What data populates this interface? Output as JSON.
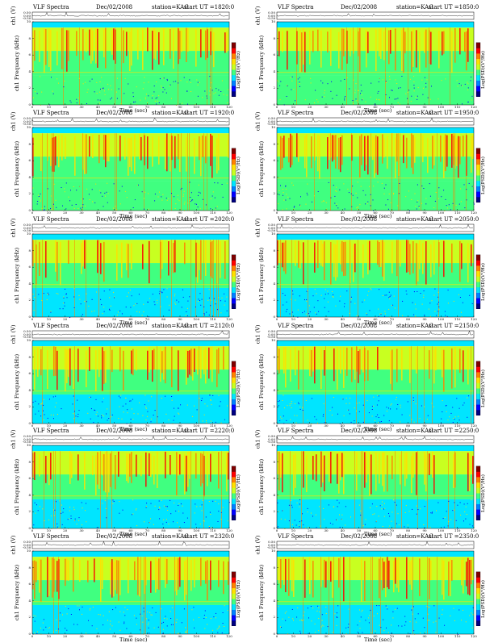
{
  "chart_data": [
    {
      "type": "heatmap",
      "title": {
        "prog": "VLF Spectra",
        "date": "Dec/02/2008",
        "station": "station=KAG",
        "start": "start  UT  =1820:0"
      },
      "ch_label": "ch1 (V)",
      "ch_ticks": [
        "0.50",
        "0.00",
        "-0.50"
      ],
      "ylabel": "ch1\nFrequency (kHz)",
      "yticks": [
        "0",
        "2",
        "4",
        "6",
        "8",
        "10"
      ],
      "xlabel": "Time  (sec)",
      "xticks": [
        "0",
        "10",
        "20",
        "30",
        "40",
        "50",
        "60",
        "70",
        "80",
        "90",
        "100",
        "110",
        "120"
      ],
      "xlim": [
        0,
        120
      ],
      "ylim": [
        0,
        10
      ],
      "cbar_label": "Log(PSD)(V²/Hz)"
    },
    {
      "type": "heatmap",
      "title": {
        "prog": "VLF Spectra",
        "date": "Dec/02/2008",
        "station": "station=KAG",
        "start": "start  UT  =1850:0"
      },
      "ch_label": "ch1 (V)",
      "ch_ticks": [
        "0.50",
        "0.00",
        "-0.50"
      ],
      "ylabel": "ch1\nFrequency (kHz)",
      "yticks": [
        "0",
        "2",
        "4",
        "6",
        "8",
        "10"
      ],
      "xlabel": "Time  (sec)",
      "xticks": [
        "0",
        "10",
        "20",
        "30",
        "40",
        "50",
        "60",
        "70",
        "80",
        "90",
        "100",
        "110",
        "120"
      ],
      "xlim": [
        0,
        120
      ],
      "ylim": [
        0,
        10
      ],
      "cbar_label": "Log(PSD)(V²/Hz)"
    },
    {
      "type": "heatmap",
      "title": {
        "prog": "VLF Spectra",
        "date": "Dec/02/2008",
        "station": "station=KAG",
        "start": "start  UT  =1920:0"
      },
      "ch_label": "ch1 (V)",
      "ch_ticks": [
        "0.50",
        "0.00",
        "-0.50"
      ],
      "ylabel": "ch1\nFrequency (kHz)",
      "yticks": [
        "0",
        "2",
        "4",
        "6",
        "8",
        "10"
      ],
      "xlabel": "Time  (sec)",
      "xticks": [
        "0",
        "10",
        "20",
        "30",
        "40",
        "50",
        "60",
        "70",
        "80",
        "90",
        "100",
        "110",
        "120"
      ],
      "xlim": [
        0,
        120
      ],
      "ylim": [
        0,
        10
      ],
      "cbar_label": "Log(PSD)(V²/Hz)"
    },
    {
      "type": "heatmap",
      "title": {
        "prog": "VLF Spectra",
        "date": "Dec/02/2008",
        "station": "station=KAG",
        "start": "start  UT  =1950:0"
      },
      "ch_label": "ch1 (V)",
      "ch_ticks": [
        "0.50",
        "0.00",
        "-0.50"
      ],
      "ylabel": "ch1\nFrequency (kHz)",
      "yticks": [
        "0",
        "2",
        "4",
        "6",
        "8",
        "10"
      ],
      "xlabel": "Time  (sec)",
      "xticks": [
        "0",
        "10",
        "20",
        "30",
        "40",
        "50",
        "60",
        "70",
        "80",
        "90",
        "100",
        "110",
        "120"
      ],
      "xlim": [
        0,
        120
      ],
      "ylim": [
        0,
        10
      ],
      "cbar_label": "Log(PSD)(V²/Hz)"
    },
    {
      "type": "heatmap",
      "title": {
        "prog": "VLF Spectra",
        "date": "Dec/02/2008",
        "station": "station=KAG",
        "start": "start  UT  =2020:0"
      },
      "ch_label": "ch1 (V)",
      "ch_ticks": [
        "0.50",
        "0.00",
        "-0.50"
      ],
      "ylabel": "ch1\nFrequency (kHz)",
      "yticks": [
        "0",
        "2",
        "4",
        "6",
        "8",
        "10"
      ],
      "xlabel": "Time  (sec)",
      "xticks": [
        "0",
        "10",
        "20",
        "30",
        "40",
        "50",
        "60",
        "70",
        "80",
        "90",
        "100",
        "110",
        "120"
      ],
      "xlim": [
        0,
        120
      ],
      "ylim": [
        0,
        10
      ],
      "cbar_label": "Log(PSD)(V²/Hz)"
    },
    {
      "type": "heatmap",
      "title": {
        "prog": "VLF Spectra",
        "date": "Dec/02/2008",
        "station": "station=KAG",
        "start": "start  UT  =2050:0"
      },
      "ch_label": "ch1 (V)",
      "ch_ticks": [
        "0.50",
        "0.00",
        "-0.50"
      ],
      "ylabel": "ch1\nFrequency (kHz)",
      "yticks": [
        "0",
        "2",
        "4",
        "6",
        "8",
        "10"
      ],
      "xlabel": "Time  (sec)",
      "xticks": [
        "0",
        "10",
        "20",
        "30",
        "40",
        "50",
        "60",
        "70",
        "80",
        "90",
        "100",
        "110",
        "120"
      ],
      "xlim": [
        0,
        120
      ],
      "ylim": [
        0,
        10
      ],
      "cbar_label": "Log(PSD)(V²/Hz)"
    },
    {
      "type": "heatmap",
      "title": {
        "prog": "VLF Spectra",
        "date": "Dec/02/2008",
        "station": "station=KAG",
        "start": "start  UT  =2120:0"
      },
      "ch_label": "ch1 (V)",
      "ch_ticks": [
        "0.50",
        "0.00",
        "-0.50"
      ],
      "ylabel": "ch1\nFrequency (kHz)",
      "yticks": [
        "0",
        "2",
        "4",
        "6",
        "8",
        "10"
      ],
      "xlabel": "Time  (sec)",
      "xticks": [
        "0",
        "10",
        "20",
        "30",
        "40",
        "50",
        "60",
        "70",
        "80",
        "90",
        "100",
        "110",
        "120"
      ],
      "xlim": [
        0,
        120
      ],
      "ylim": [
        0,
        10
      ],
      "cbar_label": "Log(PSD)(V²/Hz)"
    },
    {
      "type": "heatmap",
      "title": {
        "prog": "VLF Spectra",
        "date": "Dec/02/2008",
        "station": "station=KAG",
        "start": "start  UT  =2150:0"
      },
      "ch_label": "ch1 (V)",
      "ch_ticks": [
        "0.50",
        "0.00",
        "-0.50"
      ],
      "ylabel": "ch1\nFrequency (kHz)",
      "yticks": [
        "0",
        "2",
        "4",
        "6",
        "8",
        "10"
      ],
      "xlabel": "Time  (sec)",
      "xticks": [
        "0",
        "10",
        "20",
        "30",
        "40",
        "50",
        "60",
        "70",
        "80",
        "90",
        "100",
        "110",
        "120"
      ],
      "xlim": [
        0,
        120
      ],
      "ylim": [
        0,
        10
      ],
      "cbar_label": "Log(PSD)(V²/Hz)"
    },
    {
      "type": "heatmap",
      "title": {
        "prog": "VLF Spectra",
        "date": "Dec/02/2008",
        "station": "station=KAG",
        "start": "start  UT  =2220:0"
      },
      "ch_label": "ch1 (V)",
      "ch_ticks": [
        "0.50",
        "0.00",
        "-0.50"
      ],
      "ylabel": "ch1\nFrequency (kHz)",
      "yticks": [
        "0",
        "2",
        "4",
        "6",
        "8",
        "10"
      ],
      "xlabel": "Time  (sec)",
      "xticks": [
        "0",
        "10",
        "20",
        "30",
        "40",
        "50",
        "60",
        "70",
        "80",
        "90",
        "100",
        "110",
        "120"
      ],
      "xlim": [
        0,
        120
      ],
      "ylim": [
        0,
        10
      ],
      "cbar_label": "Log(PSD)(V²/Hz)"
    },
    {
      "type": "heatmap",
      "title": {
        "prog": "VLF Spectra",
        "date": "Dec/02/2008",
        "station": "station=KAG",
        "start": "start  UT  =2250:0"
      },
      "ch_label": "ch1 (V)",
      "ch_ticks": [
        "0.50",
        "0.00",
        "-0.50"
      ],
      "ylabel": "ch1\nFrequency (kHz)",
      "yticks": [
        "0",
        "2",
        "4",
        "6",
        "8",
        "10"
      ],
      "xlabel": "Time  (sec)",
      "xticks": [
        "0",
        "10",
        "20",
        "30",
        "40",
        "50",
        "60",
        "70",
        "80",
        "90",
        "100",
        "110",
        "120"
      ],
      "xlim": [
        0,
        120
      ],
      "ylim": [
        0,
        10
      ],
      "cbar_label": "Log(PSD)(V²/Hz)"
    },
    {
      "type": "heatmap",
      "title": {
        "prog": "VLF Spectra",
        "date": "Dec/02/2008",
        "station": "station=KAG",
        "start": "start  UT  =2320:0"
      },
      "ch_label": "ch1 (V)",
      "ch_ticks": [
        "0.50",
        "0.00",
        "-0.50"
      ],
      "ylabel": "ch1\nFrequency (kHz)",
      "yticks": [
        "0",
        "2",
        "4",
        "6",
        "8",
        "10"
      ],
      "xlabel": "Time  (sec)",
      "xticks": [
        "0",
        "10",
        "20",
        "30",
        "40",
        "50",
        "60",
        "70",
        "80",
        "90",
        "100",
        "110",
        "120"
      ],
      "xlim": [
        0,
        120
      ],
      "ylim": [
        0,
        10
      ],
      "cbar_label": "Log(PSD)(V²/Hz)"
    },
    {
      "type": "heatmap",
      "title": {
        "prog": "VLF Spectra",
        "date": "Dec/02/2008",
        "station": "station=KAG",
        "start": "start  UT  =2350:0"
      },
      "ch_label": "ch1 (V)",
      "ch_ticks": [
        "0.50",
        "0.00",
        "-0.50"
      ],
      "ylabel": "ch1\nFrequency (kHz)",
      "yticks": [
        "0",
        "2",
        "4",
        "6",
        "8",
        "10"
      ],
      "xlabel": "Time  (sec)",
      "xticks": [
        "0",
        "10",
        "20",
        "30",
        "40",
        "50",
        "60",
        "70",
        "80",
        "90",
        "100",
        "110",
        "120"
      ],
      "xlim": [
        0,
        120
      ],
      "ylim": [
        0,
        10
      ],
      "cbar_label": "Log(PSD)(V²/Hz)"
    }
  ],
  "colors": {
    "colormap": [
      "#00007f",
      "#0000ff",
      "#0080ff",
      "#00e5ff",
      "#40ff80",
      "#c8ff20",
      "#ffe000",
      "#ff8000",
      "#ff0000",
      "#7f0000"
    ]
  }
}
